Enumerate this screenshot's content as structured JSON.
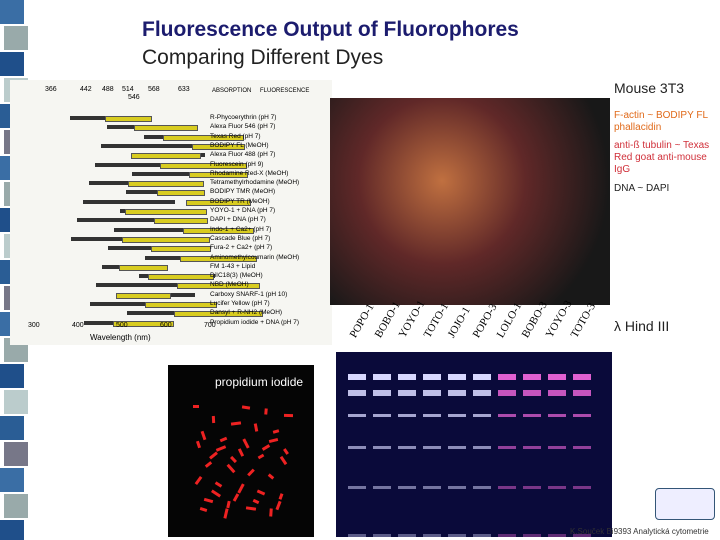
{
  "header": {
    "title": "Fluorescence Output of Fluorophores",
    "subtitle": "Comparing Different Dyes"
  },
  "spectrum": {
    "top_labels": [
      "366",
      "442",
      "488",
      "514",
      "546",
      "568",
      "633"
    ],
    "legend": [
      "ABSORPTION",
      "FLUORESCENCE"
    ],
    "dyes": [
      "R-Phycoerythrin (pH 7)",
      "Alexa Fluor 546 (pH 7)",
      "Texas Red (pH 7)",
      "BODIPY FL (MeOH)",
      "Alexa Fluor 488 (pH 7)",
      "Fluorescein (pH 9)",
      "Rhodamine Red-X (MeOH)",
      "Tetramethylrhodamine (MeOH)",
      "BODIPY TMR (MeOH)",
      "BODIPY TR (MeOH)",
      "YOYO-1 + DNA (pH 7)",
      "DAPI + DNA (pH 7)",
      "Indo-1 + Ca2+ (pH 7)",
      "Cascade Blue (pH 7)",
      "Fura-2 + Ca2+ (pH 7)",
      "Aminomethylcoumarin (MeOH)",
      "FM 1-43 + Lipid",
      "DiIC18(3) (MeOH)",
      "NBD (MeOH)",
      "Carboxy SNARF-1 (pH 10)",
      "Lucifer Yellow (pH 7)",
      "Dansyl + R-NH2 (MeOH)",
      "Propidium iodide + DNA (pH 7)"
    ],
    "axis_ticks": [
      "300",
      "400",
      "500",
      "600",
      "700"
    ],
    "axis_label": "Wavelength (nm)"
  },
  "cells": {
    "title": "Mouse 3T3",
    "notes": [
      "F-actin ~ BODIPY FL phallacidin",
      "anti-ß tubulin ~ Texas Red goat anti-mouse IgG",
      "DNA ~ DAPI"
    ]
  },
  "gel": {
    "lanes": [
      "POPO-1",
      "BOBO-1",
      "YOYO-1",
      "TOTO-1",
      "JOJO-1",
      "POPO-3",
      "LOLO-1",
      "BOBO-3",
      "YOYO-3",
      "TOTO-3"
    ],
    "marker": "λ Hind III"
  },
  "pi_label": "propidium iodide",
  "footer": "K.Souček Bi9393 Analytická cytometrie"
}
